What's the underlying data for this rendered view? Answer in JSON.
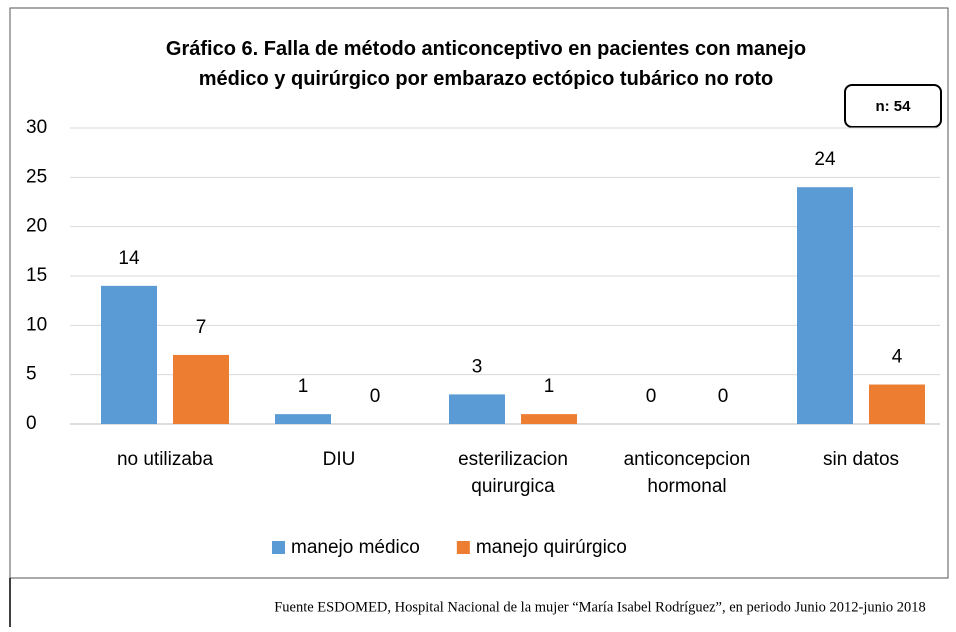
{
  "chart_data": {
    "type": "bar",
    "title": "Gráfico 6. Falla de método anticonceptivo en pacientes con manejo\nmédico y quirúrgico por embarazo ectópico tubárico no roto",
    "annotation": "n: 54",
    "categories": [
      "no utilizaba",
      "DIU",
      "esterilizacion\nquirurgica",
      "anticoncepcion\nhormonal",
      "sin datos"
    ],
    "series": [
      {
        "name": "manejo médico",
        "color": "#5b9bd5",
        "values": [
          14,
          1,
          3,
          0,
          24
        ]
      },
      {
        "name": "manejo quirúrgico",
        "color": "#ed7d31",
        "values": [
          7,
          0,
          1,
          0,
          4
        ]
      }
    ],
    "ylim": [
      0,
      30
    ],
    "yticks": [
      0,
      5,
      10,
      15,
      20,
      25,
      30
    ],
    "grid": true,
    "legend": "bottom",
    "source": "Fuente ESDOMED, Hospital Nacional de la mujer “María Isabel Rodríguez”, en periodo Junio 2012-junio 2018"
  }
}
